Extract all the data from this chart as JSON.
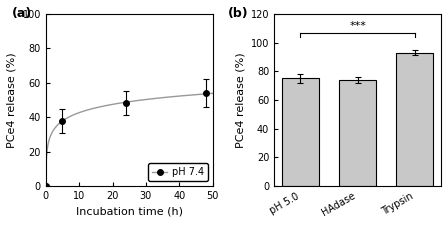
{
  "panel_a": {
    "x": [
      0,
      5,
      24,
      48
    ],
    "y": [
      0,
      38,
      48,
      54
    ],
    "yerr": [
      0,
      7,
      7,
      8
    ],
    "label": "pH 7.4",
    "xlabel": "Incubation time (h)",
    "ylabel": "PCe4 release (%)",
    "xlim": [
      0,
      50
    ],
    "ylim": [
      0,
      100
    ],
    "xticks": [
      0,
      10,
      20,
      30,
      40,
      50
    ],
    "yticks": [
      0,
      20,
      40,
      60,
      80,
      100
    ],
    "line_color": "#999999",
    "marker_color": "black",
    "title": "(a)"
  },
  "panel_b": {
    "categories": [
      "pH 5.0",
      "HAdase",
      "Trypsin"
    ],
    "values": [
      75,
      74,
      93
    ],
    "yerr": [
      3,
      2,
      2
    ],
    "ylabel": "PCe4 release (%)",
    "ylim": [
      0,
      120
    ],
    "yticks": [
      0,
      20,
      40,
      60,
      80,
      100,
      120
    ],
    "bar_color": "#c8c8c8",
    "bar_edge_color": "black",
    "significance_text": "***",
    "sig_bar_x1": 0,
    "sig_bar_x2": 2,
    "sig_bar_y": 107,
    "title": "(b)"
  },
  "background_color": "white",
  "tick_fontsize": 7,
  "label_fontsize": 8,
  "title_fontsize": 9
}
